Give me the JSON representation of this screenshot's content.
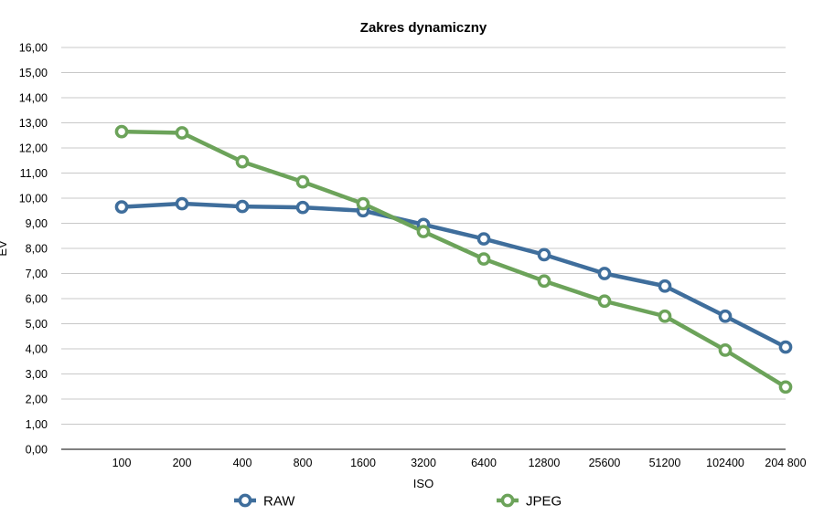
{
  "chart_data": {
    "type": "line",
    "title": "Zakres dynamiczny",
    "xlabel": "ISO",
    "ylabel": "EV",
    "categories": [
      "100",
      "200",
      "400",
      "800",
      "1600",
      "3200",
      "6400",
      "12800",
      "25600",
      "51200",
      "102400",
      "204 800"
    ],
    "series": [
      {
        "name": "RAW",
        "color": "#3f6e9c",
        "values": [
          9.65,
          9.78,
          9.67,
          9.63,
          9.5,
          8.95,
          8.38,
          7.75,
          7.0,
          6.5,
          5.3,
          4.07
        ]
      },
      {
        "name": "JPEG",
        "color": "#6ca35a",
        "values": [
          12.65,
          12.6,
          11.45,
          10.65,
          9.78,
          8.67,
          7.58,
          6.7,
          5.9,
          5.3,
          3.95,
          2.48
        ]
      }
    ],
    "ylim": [
      0,
      16
    ],
    "yticks": [
      "0,00",
      "1,00",
      "2,00",
      "3,00",
      "4,00",
      "5,00",
      "6,00",
      "7,00",
      "8,00",
      "9,00",
      "10,00",
      "11,00",
      "12,00",
      "13,00",
      "14,00",
      "15,00",
      "16,00"
    ],
    "grid": true,
    "legend": "bottom",
    "gridColor": "#c8c8c8",
    "axisColor": "#000000"
  }
}
